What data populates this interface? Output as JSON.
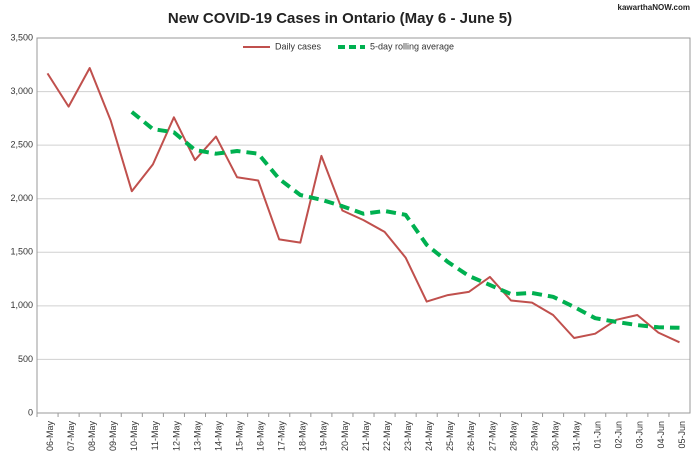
{
  "chart_data": {
    "type": "line",
    "title": "New COVID-19 Cases in Ontario (May 6 - June 5)",
    "watermark": "kawarthaNOW.com",
    "categories": [
      "06-May",
      "07-May",
      "08-May",
      "09-May",
      "10-May",
      "11-May",
      "12-May",
      "13-May",
      "14-May",
      "15-May",
      "16-May",
      "17-May",
      "18-May",
      "19-May",
      "20-May",
      "21-May",
      "22-May",
      "23-May",
      "24-May",
      "25-May",
      "26-May",
      "27-May",
      "28-May",
      "29-May",
      "30-May",
      "31-May",
      "01-Jun",
      "02-Jun",
      "03-Jun",
      "04-Jun",
      "05-Jun"
    ],
    "series": [
      {
        "name": "Daily cases",
        "color": "#c0504d",
        "dashed": false,
        "values": [
          3170,
          2860,
          3220,
          2730,
          2070,
          2320,
          2760,
          2360,
          2580,
          2200,
          2170,
          1620,
          1590,
          2400,
          1890,
          1800,
          1690,
          1450,
          1040,
          1100,
          1130,
          1270,
          1050,
          1030,
          915,
          700,
          740,
          870,
          915,
          750,
          660
        ]
      },
      {
        "name": "5-day rolling average",
        "color": "#00b050",
        "dashed": true,
        "values": [
          null,
          null,
          null,
          null,
          2810,
          2650,
          2620,
          2455,
          2420,
          2445,
          2420,
          2185,
          2035,
          1990,
          1930,
          1860,
          1885,
          1850,
          1570,
          1410,
          1280,
          1195,
          1110,
          1120,
          1085,
          990,
          885,
          850,
          820,
          800,
          795
        ]
      }
    ],
    "ylim": [
      0,
      3500
    ],
    "yticks": [
      0,
      500,
      {
        "value": 1000,
        "label": "1,000"
      },
      {
        "value": 1500,
        "label": "1,500"
      },
      {
        "value": 2000,
        "label": "2,000"
      },
      {
        "value": 2500,
        "label": "2,500"
      },
      {
        "value": 3000,
        "label": "3,000"
      },
      {
        "value": 3500,
        "label": "3,500"
      }
    ],
    "grid": true,
    "legend": "top"
  }
}
